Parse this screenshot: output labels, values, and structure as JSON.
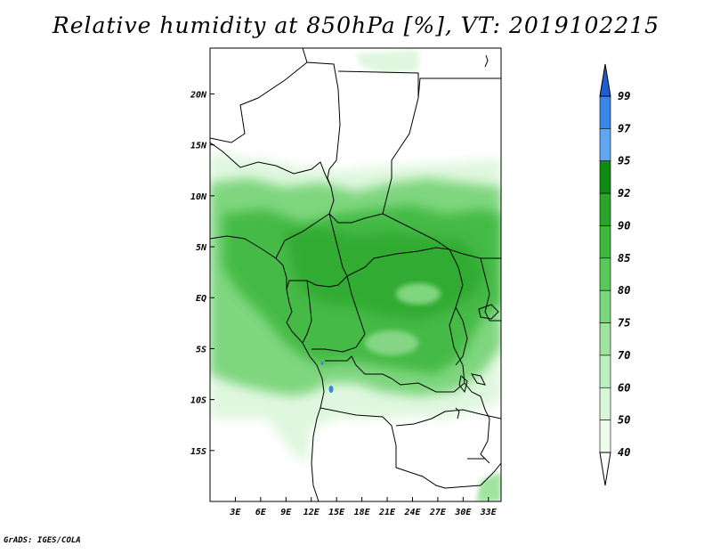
{
  "title": "Relative humidity at 850hPa [%], VT: 2019102215",
  "footer": "GrADS: IGES/COLA",
  "map": {
    "lat_labels": [
      "20N",
      "15N",
      "10N",
      "5N",
      "EQ",
      "5S",
      "10S",
      "15S"
    ],
    "lon_labels": [
      "3E",
      "6E",
      "9E",
      "12E",
      "15E",
      "18E",
      "21E",
      "24E",
      "27E",
      "30E",
      "33E"
    ],
    "lat_range": [
      -20,
      24.5
    ],
    "lon_range": [
      0,
      34.5
    ]
  },
  "colorbar": {
    "levels": [
      "99",
      "97",
      "95",
      "92",
      "90",
      "85",
      "80",
      "75",
      "70",
      "60",
      "50",
      "40"
    ],
    "colors": [
      "#1e5fd0",
      "#3a85e8",
      "#5fa8f0",
      "#0e8c14",
      "#2aa52c",
      "#3db83d",
      "#58c858",
      "#7ad67a",
      "#9fe39f",
      "#bdeebd",
      "#d9f6d9",
      "#eefcee"
    ],
    "top_arrow_color": "#1e5fd0",
    "bottom_arrow_color": "#ffffff"
  },
  "colors": {
    "light_green": "#dff7df",
    "mid_green": "#7fd67f",
    "dark_green": "#3fb83f",
    "deep_green": "#2aa52c",
    "water_blue": "#3a85e8"
  }
}
